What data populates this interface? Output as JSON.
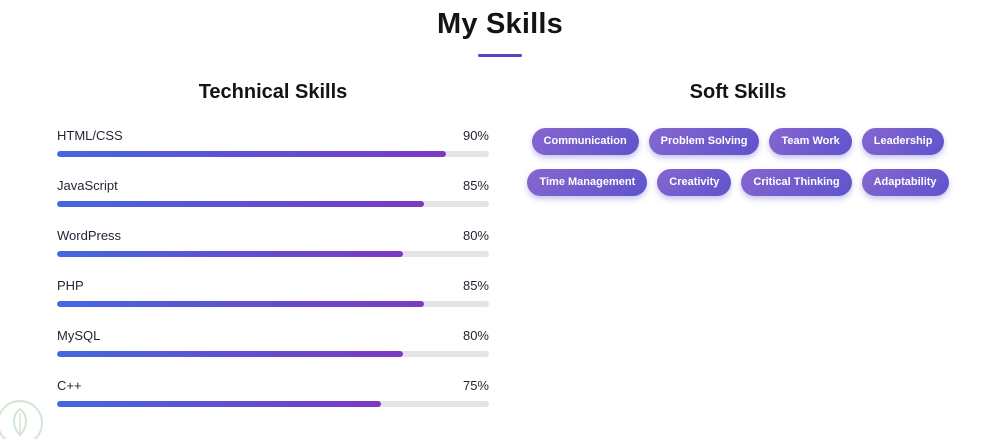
{
  "page": {
    "title": "My Skills"
  },
  "technical": {
    "heading": "Technical Skills",
    "skills": [
      {
        "name": "HTML/CSS",
        "percent_label": "90%",
        "value": 90
      },
      {
        "name": "JavaScript",
        "percent_label": "85%",
        "value": 85
      },
      {
        "name": "WordPress",
        "percent_label": "80%",
        "value": 80
      },
      {
        "name": "PHP",
        "percent_label": "85%",
        "value": 85
      },
      {
        "name": "MySQL",
        "percent_label": "80%",
        "value": 80
      },
      {
        "name": "C++",
        "percent_label": "75%",
        "value": 75
      }
    ]
  },
  "soft": {
    "heading": "Soft Skills",
    "badges": [
      {
        "label": "Communication"
      },
      {
        "label": "Problem Solving"
      },
      {
        "label": "Team Work"
      },
      {
        "label": "Leadership"
      },
      {
        "label": "Time Management"
      },
      {
        "label": "Creativity"
      },
      {
        "label": "Critical Thinking"
      },
      {
        "label": "Adaptability"
      }
    ]
  },
  "colors": {
    "title_underline": "#5447c6",
    "bar_gradient_start": "#4467e0",
    "bar_gradient_end": "#7c3ac2",
    "bar_track": "#e4e4e8",
    "pill_gradient_start": "#8766cf",
    "pill_gradient_end": "#5e54cd",
    "pill_text": "#ffffff"
  },
  "icons": {
    "watermark": "leaf-logo-icon"
  }
}
